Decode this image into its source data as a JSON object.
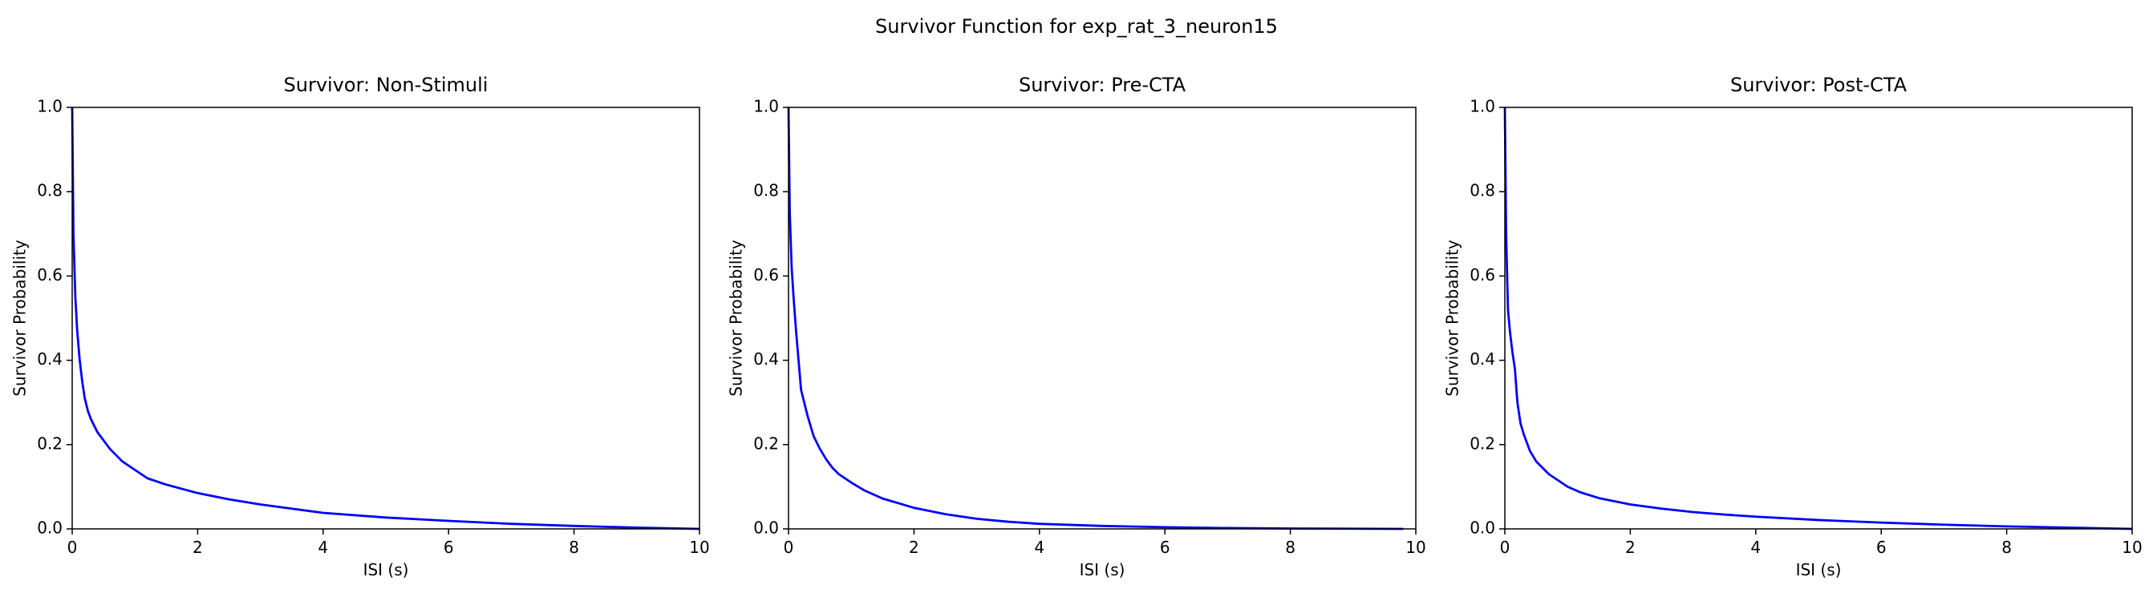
{
  "figure": {
    "suptitle": "Survivor Function for exp_rat_3_neuron15"
  },
  "colors": {
    "line": "#0000ff",
    "axes": "#000000",
    "background": "#ffffff"
  },
  "chart_data": [
    {
      "type": "line",
      "title": "Survivor: Non-Stimuli",
      "xlabel": "ISI (s)",
      "ylabel": "Survivor Probability",
      "xlim": [
        0,
        10
      ],
      "ylim": [
        0,
        1
      ],
      "xticks": [
        "0",
        "2",
        "4",
        "6",
        "8",
        "10"
      ],
      "yticks": [
        "0.0",
        "0.2",
        "0.4",
        "0.6",
        "0.8",
        "1.0"
      ],
      "grid": false,
      "series": [
        {
          "x": [
            0,
            0.02,
            0.05,
            0.08,
            0.12,
            0.16,
            0.2,
            0.25,
            0.3,
            0.4,
            0.5,
            0.6,
            0.7,
            0.8,
            0.9,
            1.0,
            1.2,
            1.5,
            2.0,
            2.5,
            3.0,
            3.5,
            4.0,
            5.0,
            6.0,
            7.0,
            8.0,
            9.0,
            10.0
          ],
          "y": [
            1.0,
            0.7,
            0.55,
            0.47,
            0.4,
            0.35,
            0.31,
            0.28,
            0.26,
            0.23,
            0.21,
            0.19,
            0.175,
            0.16,
            0.15,
            0.14,
            0.12,
            0.105,
            0.085,
            0.07,
            0.058,
            0.048,
            0.038,
            0.027,
            0.019,
            0.012,
            0.007,
            0.003,
            0.0
          ]
        }
      ]
    },
    {
      "type": "line",
      "title": "Survivor: Pre-CTA",
      "xlabel": "ISI (s)",
      "ylabel": "Survivor Probability",
      "xlim": [
        0,
        10
      ],
      "ylim": [
        0,
        1
      ],
      "xticks": [
        "0",
        "2",
        "4",
        "6",
        "8",
        "10"
      ],
      "yticks": [
        "0.0",
        "0.2",
        "0.4",
        "0.6",
        "0.8",
        "1.0"
      ],
      "grid": false,
      "series": [
        {
          "x": [
            0,
            0.02,
            0.05,
            0.08,
            0.12,
            0.16,
            0.2,
            0.25,
            0.3,
            0.4,
            0.5,
            0.6,
            0.7,
            0.8,
            1.0,
            1.2,
            1.5,
            2.0,
            2.5,
            3.0,
            3.5,
            4.0,
            5.0,
            6.0,
            7.0,
            8.0,
            9.0,
            9.8
          ],
          "y": [
            1.0,
            0.75,
            0.62,
            0.55,
            0.47,
            0.4,
            0.33,
            0.3,
            0.27,
            0.22,
            0.19,
            0.165,
            0.145,
            0.13,
            0.11,
            0.092,
            0.072,
            0.05,
            0.035,
            0.024,
            0.017,
            0.012,
            0.007,
            0.004,
            0.002,
            0.001,
            0.0005,
            0.0
          ]
        }
      ]
    },
    {
      "type": "line",
      "title": "Survivor: Post-CTA",
      "xlabel": "ISI (s)",
      "ylabel": "Survivor Probability",
      "xlim": [
        0,
        10
      ],
      "ylim": [
        0,
        1
      ],
      "xticks": [
        "0",
        "2",
        "4",
        "6",
        "8",
        "10"
      ],
      "yticks": [
        "0.0",
        "0.2",
        "0.4",
        "0.6",
        "0.8",
        "1.0"
      ],
      "grid": false,
      "series": [
        {
          "x": [
            0,
            0.02,
            0.05,
            0.08,
            0.12,
            0.16,
            0.2,
            0.25,
            0.3,
            0.4,
            0.5,
            0.6,
            0.7,
            0.8,
            1.0,
            1.2,
            1.5,
            2.0,
            2.5,
            3.0,
            3.5,
            4.0,
            5.0,
            6.0,
            7.0,
            8.0,
            9.0,
            10.0
          ],
          "y": [
            1.0,
            0.7,
            0.52,
            0.47,
            0.42,
            0.38,
            0.3,
            0.25,
            0.225,
            0.185,
            0.16,
            0.145,
            0.13,
            0.12,
            0.1,
            0.087,
            0.073,
            0.058,
            0.048,
            0.04,
            0.034,
            0.029,
            0.021,
            0.015,
            0.01,
            0.006,
            0.003,
            0.0
          ]
        }
      ]
    }
  ]
}
